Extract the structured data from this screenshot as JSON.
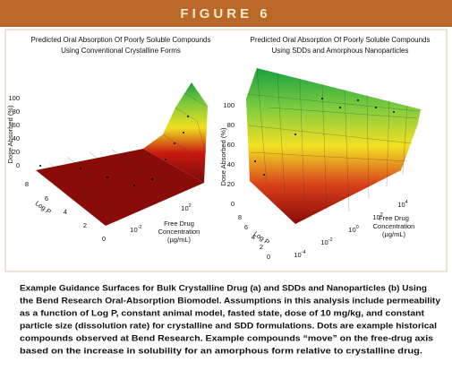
{
  "header": {
    "label": "FIGURE 6"
  },
  "panels": [
    {
      "title": [
        "Predicted Oral Absorption Of Poorly Soluble Compounds",
        "Using Conventional Crystalline Forms"
      ],
      "z_label": "Dose Absorbed (%)",
      "z_ticks": [
        "100",
        "80",
        "60",
        "40",
        "20",
        "0"
      ],
      "logp_label": "Log P",
      "logp_ticks": [
        "8",
        "6",
        "4",
        "2",
        "0"
      ],
      "conc_label": [
        "Free Drug",
        "Concentration",
        "(µg/mL)"
      ],
      "conc_ticks": [
        {
          "base": "10",
          "exp": "-2"
        },
        {
          "base": "10",
          "exp": "2"
        }
      ]
    },
    {
      "title": [
        "Predicted Oral Absorption Of Poorly Soluble Compounds",
        "Using SDDs and  Amorphous Nanoparticles"
      ],
      "z_label": "Dose Absorbed (%)",
      "z_ticks": [
        "100",
        "80",
        "60",
        "40",
        "20",
        "0"
      ],
      "logp_label": "Log P",
      "logp_ticks": [
        "8",
        "6",
        "4",
        "2",
        "0"
      ],
      "conc_label": [
        "Free Drug",
        "Concentration",
        "(µg/mL)"
      ],
      "conc_ticks": [
        {
          "base": "10",
          "exp": "-4"
        },
        {
          "base": "10",
          "exp": "-2"
        },
        {
          "base": "10",
          "exp": "0"
        },
        {
          "base": "10",
          "exp": "2"
        },
        {
          "base": "10",
          "exp": "4"
        }
      ]
    }
  ],
  "caption": [
    "Example Guidance Surfaces for Bulk Crystalline Drug (a) and SDDs and Nanoparticles (b) Using",
    "the Bend Research Oral-Absorption Biomodel. Assumptions in this analysis include permeability",
    "as a function of Log P, constant animal model, fasted state, dose of 10 mg/kg, and constant",
    "particle size (dissolution rate) for crystalline and SDD formulations. Dots are example historical",
    "compounds observed at Bend Research.  Example compounds “move” on the free-drug axis",
    "based on the increase in solubility for an amorphous form relative to crystalline drug."
  ]
}
